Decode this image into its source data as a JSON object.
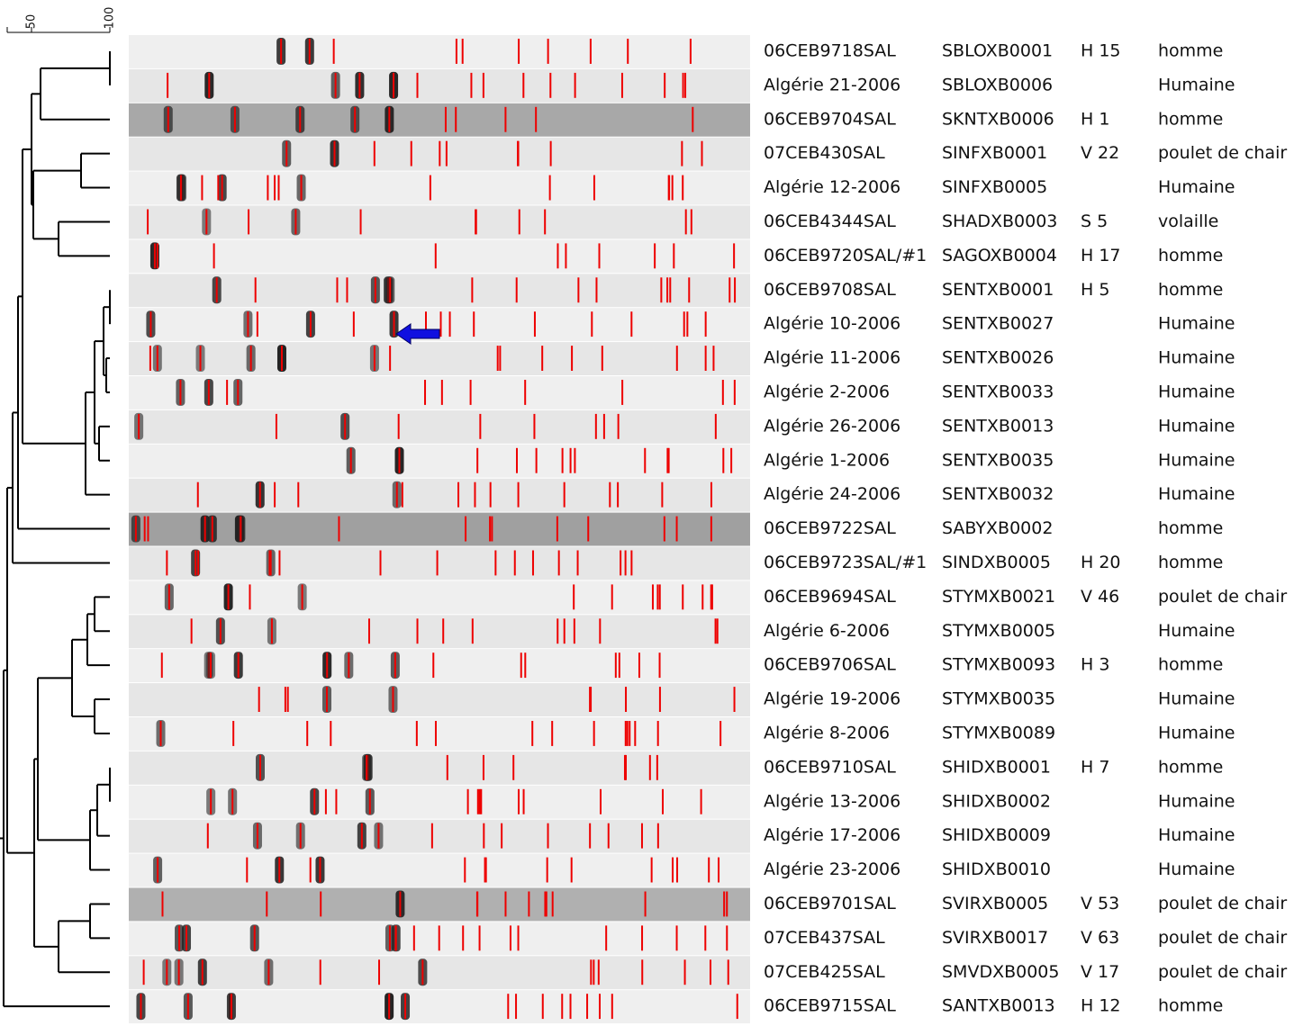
{
  "scale": {
    "labels": [
      "50",
      "100"
    ]
  },
  "rows": [
    {
      "isolate": "06CEB9718SAL",
      "code": "SBLOXB0001",
      "tag": "H 15",
      "origin": "homme"
    },
    {
      "isolate": "Algérie 21-2006",
      "code": "SBLOXB0006",
      "origin": "Humaine"
    },
    {
      "isolate": "06CEB9704SAL",
      "code": "SKNTXB0006",
      "tag": "H 1",
      "origin": "homme"
    },
    {
      "isolate": "07CEB430SAL",
      "code": "SINFXB0001",
      "tag": "V 22",
      "origin": "poulet de chair"
    },
    {
      "isolate": "Algérie 12-2006",
      "code": "SINFXB0005",
      "origin": "Humaine"
    },
    {
      "isolate": "06CEB4344SAL",
      "code": "SHADXB0003",
      "tag": "S 5",
      "origin": "volaille"
    },
    {
      "isolate": "06CEB9720SAL/#1",
      "code": "SAGOXB0004",
      "tag": "H 17",
      "origin": "homme"
    },
    {
      "isolate": "06CEB9708SAL",
      "code": "SENTXB0001",
      "tag": "H 5",
      "origin": "homme"
    },
    {
      "isolate": "Algérie 10-2006",
      "code": "SENTXB0027",
      "origin": "Humaine"
    },
    {
      "isolate": "Algérie 11-2006",
      "code": "SENTXB0026",
      "origin": "Humaine"
    },
    {
      "isolate": "Algérie 2-2006",
      "code": "SENTXB0033",
      "origin": "Humaine"
    },
    {
      "isolate": "Algérie 26-2006",
      "code": "SENTXB0013",
      "origin": "Humaine"
    },
    {
      "isolate": "Algérie 1-2006",
      "code": "SENTXB0035",
      "origin": "Humaine"
    },
    {
      "isolate": "Algérie 24-2006",
      "code": "SENTXB0032",
      "origin": "Humaine"
    },
    {
      "isolate": "06CEB9722SAL",
      "code": "SABYXB0002",
      "origin": "homme"
    },
    {
      "isolate": "06CEB9723SAL/#1",
      "code": "SINDXB0005",
      "tag": "H 20",
      "origin": "homme"
    },
    {
      "isolate": "06CEB9694SAL",
      "code": "STYMXB0021",
      "tag": "V 46",
      "origin": "poulet de chair"
    },
    {
      "isolate": "Algérie 6-2006",
      "code": "STYMXB0005",
      "origin": "Humaine"
    },
    {
      "isolate": "06CEB9706SAL",
      "code": "STYMXB0093",
      "tag": "H 3",
      "origin": "homme"
    },
    {
      "isolate": "Algérie 19-2006",
      "code": "STYMXB0035",
      "origin": "Humaine"
    },
    {
      "isolate": "Algérie 8-2006",
      "code": "STYMXB0089",
      "origin": "Humaine"
    },
    {
      "isolate": "06CEB9710SAL",
      "code": "SHIDXB0001",
      "tag": "H 7",
      "origin": "homme"
    },
    {
      "isolate": "Algérie 13-2006",
      "code": "SHIDXB0002",
      "origin": "Humaine"
    },
    {
      "isolate": "Algérie 17-2006",
      "code": "SHIDXB0009",
      "origin": "Humaine"
    },
    {
      "isolate": "Algérie 23-2006",
      "code": "SHIDXB0010",
      "origin": "Humaine"
    },
    {
      "isolate": "06CEB9701SAL",
      "code": "SVIRXB0005",
      "tag": "V 53",
      "origin": "poulet de chair"
    },
    {
      "isolate": "07CEB437SAL",
      "code": "SVIRXB0017",
      "tag": "V 63",
      "origin": "poulet de chair"
    },
    {
      "isolate": "07CEB425SAL",
      "code": "SMVDXB0005",
      "tag": "V 17",
      "origin": "poulet de chair"
    },
    {
      "isolate": "06CEB9715SAL",
      "code": "SANTXB0013",
      "tag": "H 12",
      "origin": "homme"
    }
  ]
}
